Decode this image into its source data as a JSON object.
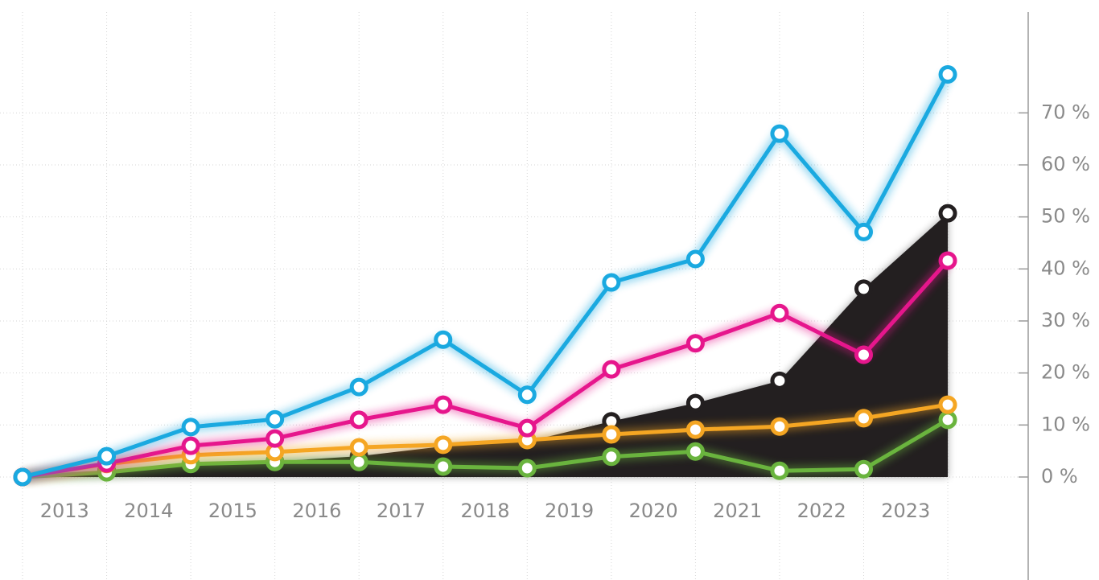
{
  "chart_data": {
    "type": "line",
    "categories": [
      null,
      "2013",
      "2014",
      "2015",
      "2016",
      "2017",
      "2018",
      "2019",
      "2020",
      "2021",
      "2022",
      "2023"
    ],
    "ylim": [
      -19.8,
      91.7
    ],
    "yticks": [
      {
        "value": 0,
        "label": "0 %"
      },
      {
        "value": 10,
        "label": "10 %"
      },
      {
        "value": 20,
        "label": "20 %"
      },
      {
        "value": 30,
        "label": "30 %"
      },
      {
        "value": 40,
        "label": "40 %"
      },
      {
        "value": 50,
        "label": "50 %"
      },
      {
        "value": 60,
        "label": "60 %"
      },
      {
        "value": 70,
        "label": "70 %"
      }
    ],
    "grid": true,
    "series": [
      {
        "color": "#231f20",
        "style": "area",
        "values": [
          0,
          1.2,
          2.3,
          3,
          4,
          5.9,
          6.8,
          10.7,
          14.2,
          18.5,
          36.2,
          50.7
        ]
      },
      {
        "color": "#6ab43e",
        "values": [
          0,
          0.9,
          2.5,
          2.9,
          2.9,
          2.0,
          1.7,
          3.9,
          4.9,
          1.2,
          1.5,
          11.0
        ]
      },
      {
        "color": "#f5a623",
        "values": [
          0,
          2.5,
          4.2,
          4.8,
          5.7,
          6.2,
          7.1,
          8.2,
          9.1,
          9.7,
          11.3,
          13.9
        ]
      },
      {
        "color": "#e6168c",
        "values": [
          0,
          2.6,
          6.0,
          7.4,
          11.0,
          13.9,
          9.4,
          20.7,
          25.7,
          31.5,
          23.5,
          41.6
        ]
      },
      {
        "color": "#1aa9e0",
        "values": [
          0,
          4.0,
          9.6,
          11.1,
          17.3,
          26.4,
          15.8,
          37.4,
          41.9,
          66.0,
          47.1,
          77.4
        ]
      }
    ]
  }
}
